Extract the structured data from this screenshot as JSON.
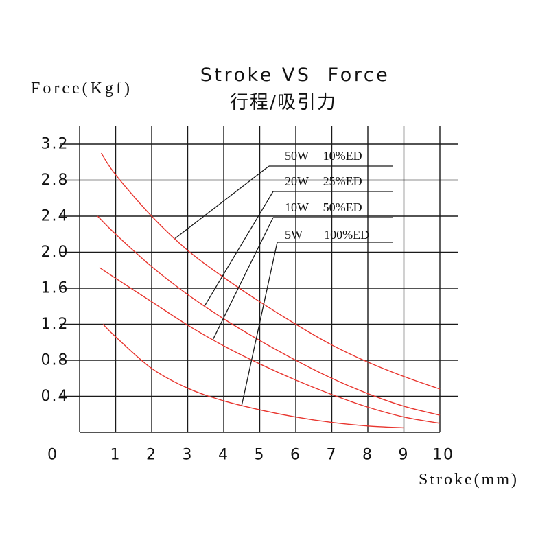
{
  "chart_data": {
    "type": "line",
    "title": "Stroke VS  Force",
    "subtitle": "行程/吸引力",
    "xlabel": "Stroke(mm)",
    "ylabel": "Force(Kgf)",
    "xlim": [
      0,
      10
    ],
    "ylim": [
      0,
      3.4
    ],
    "x_ticks": [
      "0",
      "1",
      "2",
      "3",
      "4",
      "5",
      "6",
      "7",
      "8",
      "9",
      "10"
    ],
    "y_ticks": [
      "0.4",
      "0.8",
      "1.2",
      "1.6",
      "2.0",
      "2.4",
      "2.8",
      "3.2"
    ],
    "grid": true,
    "legend": "top-right",
    "series": [
      {
        "name": "50W  10%ED",
        "x": [
          0.6,
          1,
          2,
          3,
          4,
          5,
          6,
          7,
          8,
          9,
          10
        ],
        "y": [
          3.1,
          2.86,
          2.4,
          2.02,
          1.72,
          1.45,
          1.2,
          0.97,
          0.78,
          0.62,
          0.48
        ]
      },
      {
        "name": "20W  25%ED",
        "x": [
          0.5,
          1,
          2,
          3,
          4,
          5,
          6,
          7,
          8,
          9,
          10
        ],
        "y": [
          2.4,
          2.2,
          1.84,
          1.53,
          1.26,
          1.02,
          0.8,
          0.6,
          0.43,
          0.29,
          0.19
        ]
      },
      {
        "name": "10W  50%ED",
        "x": [
          0.55,
          1,
          2,
          3,
          4,
          5,
          6,
          7,
          8,
          9,
          10
        ],
        "y": [
          1.83,
          1.71,
          1.45,
          1.19,
          0.96,
          0.76,
          0.58,
          0.42,
          0.28,
          0.17,
          0.1
        ]
      },
      {
        "name": "5W   100%ED",
        "x": [
          0.65,
          1,
          2,
          3,
          4,
          5,
          6,
          7,
          8,
          9
        ],
        "y": [
          1.2,
          1.06,
          0.71,
          0.49,
          0.35,
          0.25,
          0.17,
          0.11,
          0.07,
          0.05
        ]
      }
    ]
  },
  "colors": {
    "curves": "#e8352e",
    "grid": "#1a1a1a",
    "background": "#ffffff"
  }
}
